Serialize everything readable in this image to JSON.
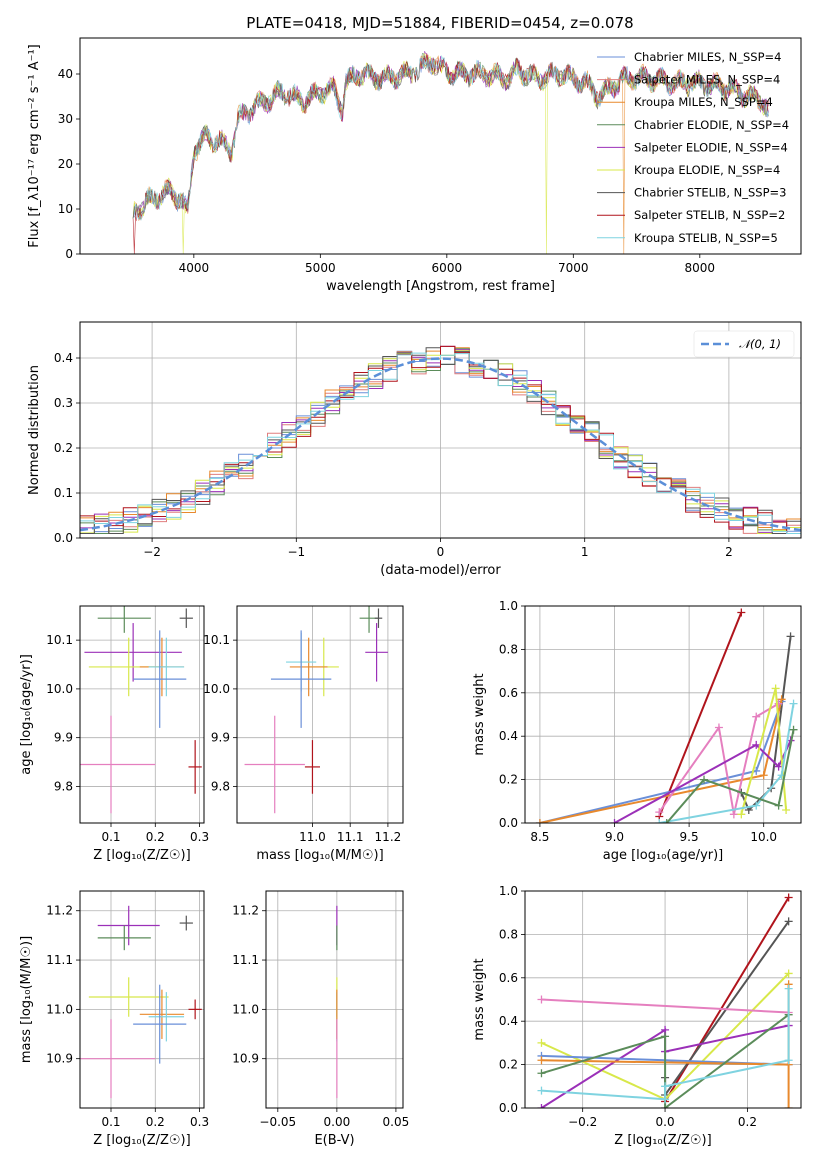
{
  "title": "PLATE=0418, MJD=51884, FIBERID=0454, z=0.078",
  "colors": {
    "Chabrier MILES": "#6a8fd8",
    "Salpeter MILES": "#e07e7e",
    "Kroupa MILES": "#e8892d",
    "Chabrier ELODIE": "#5b8c5a",
    "Salpeter ELODIE": "#9b30b8",
    "Kroupa ELODIE": "#d8e84a",
    "Chabrier STELIB": "#555555",
    "Salpeter STELIB": "#b0141c",
    "Kroupa STELIB": "#7fd3e0",
    "pink": "#e57fbf",
    "normal": "#5b8fd8"
  },
  "chart_data": [
    {
      "id": "spectrum",
      "type": "line",
      "title": "PLATE=0418, MJD=51884, FIBERID=0454, z=0.078",
      "xlabel": "wavelength [Angstrom, rest frame]",
      "ylabel": "Flux [f_λ10⁻¹⁷ erg cm⁻² s⁻¹ A⁻¹]",
      "xlim": [
        3100,
        8800
      ],
      "ylim": [
        0,
        48
      ],
      "xticks": [
        "4000",
        "5000",
        "6000",
        "7000",
        "8000"
      ],
      "yticks": [
        "0",
        "10",
        "20",
        "30",
        "40"
      ],
      "grid": false,
      "legend_position": "top-right",
      "series": [
        {
          "name": "Chabrier MILES, N_SSP=4"
        },
        {
          "name": "Salpeter MILES, N_SSP=4"
        },
        {
          "name": "Kroupa MILES, N_SSP=4"
        },
        {
          "name": "Chabrier ELODIE, N_SSP=4"
        },
        {
          "name": "Salpeter ELODIE, N_SSP=4"
        },
        {
          "name": "Kroupa ELODIE, N_SSP=4"
        },
        {
          "name": "Chabrier STELIB, N_SSP=3"
        },
        {
          "name": "Salpeter STELIB, N_SSP=2"
        },
        {
          "name": "Kroupa STELIB, N_SSP=5"
        }
      ],
      "continuum": {
        "x": [
          3520,
          3650,
          3800,
          3900,
          3950,
          4000,
          4100,
          4200,
          4300,
          4350,
          4500,
          4700,
          4860,
          5000,
          5100,
          5175,
          5200,
          5300,
          5500,
          5700,
          5890,
          5950,
          6100,
          6300,
          6500,
          6563,
          6700,
          6900,
          7100,
          7200,
          7400,
          7600,
          7800,
          8000,
          8200,
          8500,
          8550
        ],
        "y": [
          9,
          12,
          14,
          12,
          9,
          23,
          26,
          25,
          23,
          30,
          33,
          36,
          34,
          36,
          37,
          32,
          38,
          40,
          39,
          40,
          43,
          41,
          40,
          40,
          39,
          41,
          39,
          40,
          38,
          35,
          39,
          39,
          38,
          38,
          37,
          34,
          31
        ]
      },
      "dropouts": [
        {
          "series": "Kroupa ELODIE, N_SSP=4",
          "x": 3920
        },
        {
          "series": "Kroupa ELODIE, N_SSP=4",
          "x": 6790
        },
        {
          "series": "Salpeter STELIB, N_SSP=2",
          "x": 3530
        },
        {
          "series": "Kroupa MILES, N_SSP=4",
          "x": 7400
        }
      ]
    },
    {
      "id": "residuals",
      "type": "line",
      "xlabel": "(data-model)/error",
      "ylabel": "Normed distribution",
      "xlim": [
        -2.5,
        2.5
      ],
      "ylim": [
        0,
        0.48
      ],
      "xticks": [
        "−2",
        "−1",
        "0",
        "1",
        "2"
      ],
      "yticks": [
        "0.0",
        "0.1",
        "0.2",
        "0.3",
        "0.4"
      ],
      "grid": true,
      "legend_position": "top-right",
      "normal_curve": {
        "name": "𝒩(0, 1)",
        "mean": 0,
        "sd": 1
      },
      "bin_width": 0.1
    },
    {
      "id": "z-age",
      "type": "scatter",
      "xlabel": "Z [log₁₀(Z/Z☉)]",
      "ylabel": "age  [log₁₀(age/yr)]",
      "xlim": [
        0.03,
        0.31
      ],
      "ylim": [
        9.725,
        10.17
      ],
      "xticks": [
        "0.1",
        "0.2",
        "0.3"
      ],
      "yticks": [
        "9.8",
        "9.9",
        "10.0",
        "10.1"
      ],
      "grid": true,
      "points": [
        {
          "c": "Chabrier ELODIE",
          "x": 0.13,
          "y": 10.145,
          "xe": 0.06,
          "ye": 0.03
        },
        {
          "c": "Chabrier STELIB",
          "x": 0.27,
          "y": 10.145,
          "xe": 0.015,
          "ye": 0.02
        },
        {
          "c": "Salpeter ELODIE",
          "x": 0.15,
          "y": 10.075,
          "xe": 0.11,
          "ye": 0.06
        },
        {
          "c": "Kroupa ELODIE",
          "x": 0.14,
          "y": 10.045,
          "xe": 0.09,
          "ye": 0.06
        },
        {
          "c": "Kroupa MILES",
          "x": 0.215,
          "y": 10.045,
          "xe": 0.05,
          "ye": 0.06
        },
        {
          "c": "Kroupa STELIB",
          "x": 0.225,
          "y": 10.045,
          "xe": 0.04,
          "ye": 0.06
        },
        {
          "c": "Chabrier MILES",
          "x": 0.21,
          "y": 10.02,
          "xe": 0.06,
          "ye": 0.1
        },
        {
          "c": "pink",
          "x": 0.1,
          "y": 9.845,
          "xe": 0.1,
          "ye": 0.1
        },
        {
          "c": "Salpeter STELIB",
          "x": 0.29,
          "y": 9.84,
          "xe": 0.015,
          "ye": 0.055
        }
      ]
    },
    {
      "id": "mass-age",
      "type": "scatter",
      "xlabel": "mass [log₁₀(M/M☉)]",
      "ylabel": "",
      "xlim": [
        10.8,
        11.24
      ],
      "ylim": [
        9.725,
        10.17
      ],
      "xticks": [
        "11.0",
        "11.1",
        "11.2"
      ],
      "yticks": [
        "9.8",
        "9.9",
        "10.0",
        "10.1"
      ],
      "grid": true,
      "points": [
        {
          "c": "Chabrier ELODIE",
          "x": 11.15,
          "y": 10.145,
          "xe": 0.025,
          "ye": 0.03
        },
        {
          "c": "Chabrier STELIB",
          "x": 11.175,
          "y": 10.145,
          "xe": 0.01,
          "ye": 0.02
        },
        {
          "c": "Salpeter ELODIE",
          "x": 11.17,
          "y": 10.075,
          "xe": 0.03,
          "ye": 0.06
        },
        {
          "c": "Kroupa ELODIE",
          "x": 11.03,
          "y": 10.045,
          "xe": 0.04,
          "ye": 0.06
        },
        {
          "c": "Kroupa MILES",
          "x": 10.99,
          "y": 10.045,
          "xe": 0.05,
          "ye": 0.06
        },
        {
          "c": "Kroupa STELIB",
          "x": 10.97,
          "y": 10.055,
          "xe": 0.04,
          "ye": 0.06
        },
        {
          "c": "Chabrier MILES",
          "x": 10.97,
          "y": 10.02,
          "xe": 0.08,
          "ye": 0.1
        },
        {
          "c": "pink",
          "x": 10.9,
          "y": 9.845,
          "xe": 0.08,
          "ye": 0.1
        },
        {
          "c": "Salpeter STELIB",
          "x": 11.0,
          "y": 9.84,
          "xe": 0.02,
          "ye": 0.055
        }
      ]
    },
    {
      "id": "weight-age",
      "type": "line",
      "xlabel": "age  [log₁₀(age/yr)]",
      "ylabel": "mass weight",
      "xlim": [
        8.4,
        10.25
      ],
      "ylim": [
        0,
        1
      ],
      "xticks": [
        "8.5",
        "9.0",
        "9.5",
        "10.0"
      ],
      "yticks": [
        "0.0",
        "0.2",
        "0.4",
        "0.6",
        "0.8",
        "1.0"
      ],
      "grid": true,
      "series": [
        {
          "c": "Salpeter STELIB",
          "x": [
            9.3,
            9.85
          ],
          "y": [
            0.03,
            0.97
          ]
        },
        {
          "c": "Chabrier STELIB",
          "x": [
            9.85,
            9.9,
            10.05,
            10.18
          ],
          "y": [
            0.14,
            0.06,
            0.16,
            0.86
          ]
        },
        {
          "c": "Chabrier MILES",
          "x": [
            8.5,
            9.95,
            10.12
          ],
          "y": [
            0.0,
            0.24,
            0.56
          ]
        },
        {
          "c": "Kroupa MILES",
          "x": [
            8.5,
            10.0,
            10.12
          ],
          "y": [
            0.0,
            0.22,
            0.57
          ]
        },
        {
          "c": "pink",
          "x": [
            9.3,
            9.7,
            9.8,
            9.95,
            10.1
          ],
          "y": [
            0.05,
            0.44,
            0.04,
            0.49,
            0.55
          ]
        },
        {
          "c": "Salpeter ELODIE",
          "x": [
            9.0,
            9.95,
            10.1,
            10.18
          ],
          "y": [
            0.0,
            0.36,
            0.26,
            0.38
          ]
        },
        {
          "c": "Kroupa ELODIE",
          "x": [
            9.85,
            10.08,
            10.15
          ],
          "y": [
            0.04,
            0.62,
            0.06
          ]
        },
        {
          "c": "Kroupa STELIB",
          "x": [
            9.3,
            9.95,
            10.12,
            10.2
          ],
          "y": [
            0.0,
            0.08,
            0.22,
            0.55
          ]
        },
        {
          "c": "Chabrier ELODIE",
          "x": [
            9.35,
            9.6,
            10.1,
            10.2
          ],
          "y": [
            0.0,
            0.2,
            0.08,
            0.43
          ]
        }
      ]
    },
    {
      "id": "z-mass",
      "type": "scatter",
      "xlabel": "Z [log₁₀(Z/Z☉)]",
      "ylabel": "mass [log₁₀(M/M☉)]",
      "xlim": [
        0.03,
        0.31
      ],
      "ylim": [
        10.8,
        11.24
      ],
      "xticks": [
        "0.1",
        "0.2",
        "0.3"
      ],
      "yticks": [
        "10.9",
        "11.0",
        "11.1",
        "11.2"
      ],
      "grid": true,
      "points": [
        {
          "c": "Chabrier STELIB",
          "x": 0.27,
          "y": 11.175,
          "xe": 0.015,
          "ye": 0.015
        },
        {
          "c": "Salpeter ELODIE",
          "x": 0.14,
          "y": 11.17,
          "xe": 0.07,
          "ye": 0.04
        },
        {
          "c": "Chabrier ELODIE",
          "x": 0.13,
          "y": 11.145,
          "xe": 0.06,
          "ye": 0.025
        },
        {
          "c": "Kroupa ELODIE",
          "x": 0.14,
          "y": 11.025,
          "xe": 0.09,
          "ye": 0.04
        },
        {
          "c": "Salpeter STELIB",
          "x": 0.29,
          "y": 11.0,
          "xe": 0.015,
          "ye": 0.02
        },
        {
          "c": "Kroupa MILES",
          "x": 0.215,
          "y": 10.99,
          "xe": 0.05,
          "ye": 0.05
        },
        {
          "c": "Kroupa STELIB",
          "x": 0.225,
          "y": 10.985,
          "xe": 0.04,
          "ye": 0.05
        },
        {
          "c": "Chabrier MILES",
          "x": 0.21,
          "y": 10.97,
          "xe": 0.06,
          "ye": 0.08
        },
        {
          "c": "pink",
          "x": 0.1,
          "y": 10.9,
          "xe": 0.1,
          "ye": 0.08
        }
      ]
    },
    {
      "id": "ebv-mass",
      "type": "scatter",
      "xlabel": "E(B-V)",
      "ylabel": "",
      "xlim": [
        -0.06,
        0.056
      ],
      "ylim": [
        10.8,
        11.24
      ],
      "xticks": [
        "−0.05",
        "0.00",
        "0.05"
      ],
      "yticks": [
        "10.9",
        "11.0",
        "11.1",
        "11.2"
      ],
      "grid": true,
      "points": [
        {
          "c": "Salpeter ELODIE",
          "x": 0.0,
          "y": 11.17,
          "xe": 0.0,
          "ye": 0.04
        },
        {
          "c": "Chabrier ELODIE",
          "x": 0.0,
          "y": 11.145,
          "xe": 0.0,
          "ye": 0.025
        },
        {
          "c": "Kroupa ELODIE",
          "x": 0.0,
          "y": 11.025,
          "xe": 0.0,
          "ye": 0.04
        },
        {
          "c": "Kroupa STELIB",
          "x": 0.0,
          "y": 10.985,
          "xe": 0.0,
          "ye": 0.05
        },
        {
          "c": "Kroupa MILES",
          "x": 0.0,
          "y": 10.99,
          "xe": 0.0,
          "ye": 0.05
        },
        {
          "c": "pink",
          "x": 0.0,
          "y": 10.9,
          "xe": 0.0,
          "ye": 0.08
        }
      ]
    },
    {
      "id": "weight-z",
      "type": "line",
      "xlabel": "Z [log₁₀(Z/Z☉)]",
      "ylabel": "mass weight",
      "xlim": [
        -0.34,
        0.33
      ],
      "ylim": [
        0,
        1
      ],
      "xticks": [
        "−0.2",
        "0.0",
        "0.2"
      ],
      "yticks": [
        "0.0",
        "0.2",
        "0.4",
        "0.6",
        "0.8",
        "1.0"
      ],
      "grid": true,
      "series": [
        {
          "c": "Salpeter STELIB",
          "x": [
            0.0,
            0.3
          ],
          "y": [
            0.03,
            0.97
          ]
        },
        {
          "c": "Chabrier STELIB",
          "x": [
            0.0,
            0.0,
            0.3
          ],
          "y": [
            0.14,
            0.06,
            0.86
          ]
        },
        {
          "c": "Kroupa ELODIE",
          "x": [
            -0.3,
            0.0,
            0.3
          ],
          "y": [
            0.3,
            0.04,
            0.62
          ]
        },
        {
          "c": "pink",
          "x": [
            -0.3,
            0.3
          ],
          "y": [
            0.5,
            0.44
          ]
        },
        {
          "c": "Salpeter ELODIE",
          "x": [
            -0.3,
            0.0,
            0.0,
            0.3
          ],
          "y": [
            0.0,
            0.36,
            0.26,
            0.38
          ]
        },
        {
          "c": "Chabrier MILES",
          "x": [
            -0.3,
            0.0,
            0.3
          ],
          "y": [
            0.24,
            0.22,
            0.2
          ]
        },
        {
          "c": "Kroupa MILES",
          "x": [
            -0.3,
            0.3,
            0.3,
            0.3
          ],
          "y": [
            0.22,
            0.2,
            0.57,
            0.0
          ]
        },
        {
          "c": "Chabrier ELODIE",
          "x": [
            -0.3,
            0.0,
            0.0,
            0.3
          ],
          "y": [
            0.16,
            0.33,
            0.0,
            0.43
          ]
        },
        {
          "c": "Kroupa STELIB",
          "x": [
            -0.3,
            0.0,
            0.0,
            0.3,
            0.3
          ],
          "y": [
            0.08,
            0.04,
            0.1,
            0.22,
            0.55
          ]
        }
      ]
    }
  ]
}
